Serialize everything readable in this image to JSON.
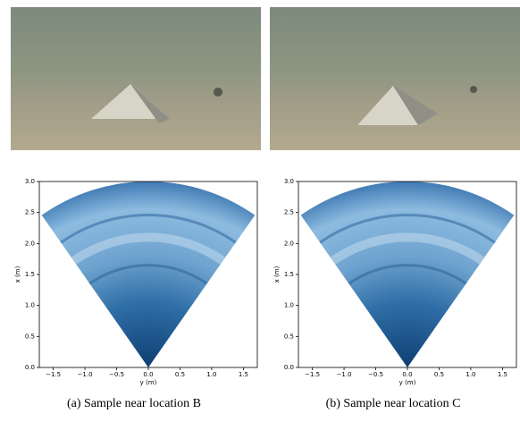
{
  "panels": [
    {
      "plot": {
        "xlabel": "y (m)",
        "ylabel": "x (m)",
        "xlim": [
          -1.72,
          1.72
        ],
        "ylim": [
          0,
          3
        ],
        "xticks": [
          {
            "value": -1.5,
            "label": "−1.5"
          },
          {
            "value": -1,
            "label": "−1.0"
          },
          {
            "value": -0.5,
            "label": "−0.5"
          },
          {
            "value": 0,
            "label": "0.0"
          },
          0.5,
          {
            "value": 1,
            "label": "1.0"
          },
          1.5
        ],
        "yticks": [
          {
            "value": 0,
            "label": "0.0"
          },
          0.5,
          {
            "value": 1,
            "label": "1.0"
          },
          1.5,
          {
            "value": 2,
            "label": "2.0"
          },
          2.5,
          {
            "value": 3,
            "label": "3.0"
          }
        ]
      },
      "caption": "(a) Sample near location B"
    },
    {
      "plot": {
        "xlabel": "y (m)",
        "ylabel": "x (m)",
        "xlim": [
          -1.72,
          1.72
        ],
        "ylim": [
          0,
          3
        ],
        "xticks": [
          {
            "value": -1.5,
            "label": "−1.5"
          },
          {
            "value": -1,
            "label": "−1.0"
          },
          {
            "value": -0.5,
            "label": "−0.5"
          },
          {
            "value": 0,
            "label": "0.0"
          },
          0.5,
          {
            "value": 1,
            "label": "1.0"
          },
          1.5
        ],
        "yticks": [
          {
            "value": 0,
            "label": "0.0"
          },
          0.5,
          {
            "value": 1,
            "label": "1.0"
          },
          1.5,
          {
            "value": 2,
            "label": "2.0"
          },
          2.5,
          {
            "value": 3,
            "label": "3.0"
          }
        ]
      },
      "caption": "(b) Sample near location C"
    }
  ]
}
